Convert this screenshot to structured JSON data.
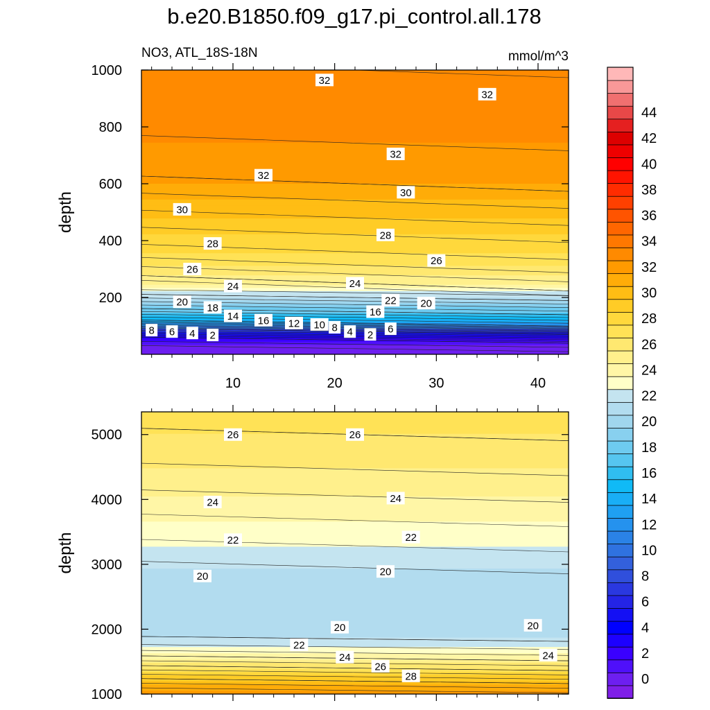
{
  "title": "b.e20.B1850.f09_g17.pi_control.all.178",
  "subtitle_left": "NO3, ATL_18S-18N",
  "subtitle_right": "mmol/m^3",
  "colorbar": {
    "levels": [
      -1,
      0,
      1,
      2,
      3,
      4,
      5,
      6,
      7,
      8,
      9,
      10,
      11,
      12,
      13,
      14,
      15,
      16,
      17,
      18,
      19,
      20,
      21,
      22,
      23,
      24,
      25,
      26,
      27,
      28,
      29,
      30,
      31,
      32,
      33,
      34,
      35,
      36,
      37,
      38,
      39,
      40,
      41,
      42,
      43,
      44,
      45,
      46
    ],
    "tick_labels": [
      "0",
      "2",
      "4",
      "6",
      "8",
      "10",
      "12",
      "14",
      "16",
      "18",
      "20",
      "22",
      "24",
      "26",
      "28",
      "30",
      "32",
      "34",
      "36",
      "38",
      "40",
      "42",
      "44"
    ],
    "colors": [
      "#7f1fe8",
      "#6d1ff0",
      "#4f10fa",
      "#3a00ff",
      "#1d00ff",
      "#0000ff",
      "#1410f4",
      "#2424e6",
      "#2a38e0",
      "#304fdc",
      "#3360dc",
      "#2f72e0",
      "#2a82e6",
      "#2592ee",
      "#1fa0f2",
      "#19aef6",
      "#10baf6",
      "#30bef0",
      "#56c6f0",
      "#6ecbf0",
      "#88d0ef",
      "#a0d6ee",
      "#b2dcef",
      "#c4e4f0",
      "#ffffc8",
      "#fff6a6",
      "#fff08c",
      "#ffe870",
      "#ffe256",
      "#ffd83c",
      "#ffcc26",
      "#ffbd14",
      "#ffac08",
      "#ff9a00",
      "#ff8a00",
      "#ff7800",
      "#ff6600",
      "#ff5400",
      "#ff4000",
      "#ff2c00",
      "#ff1400",
      "#ff0000",
      "#ee0000",
      "#dd0000",
      "#e52020",
      "#e84848",
      "#f07070",
      "#f89898",
      "#ffb8b8"
    ]
  },
  "chart_data": [
    {
      "type": "contour",
      "panel": "upper",
      "variable": "NO3",
      "region": "ATL_18S-18N",
      "units": "mmol/m^3",
      "ylabel": "depth",
      "xlabel": "",
      "xlim": [
        1,
        43
      ],
      "ylim": [
        1000,
        0
      ],
      "x_ticks": [
        10,
        20,
        30,
        40
      ],
      "y_ticks": [
        200,
        400,
        600,
        800,
        1000
      ],
      "contour_interval": 1,
      "profile": [
        {
          "depth": 20,
          "value": -1
        },
        {
          "depth": 50,
          "value": 1
        },
        {
          "depth": 80,
          "value": 6
        },
        {
          "depth": 110,
          "value": 13
        },
        {
          "depth": 150,
          "value": 17
        },
        {
          "depth": 200,
          "value": 21
        },
        {
          "depth": 250,
          "value": 24
        },
        {
          "depth": 330,
          "value": 26.5
        },
        {
          "depth": 450,
          "value": 28.5
        },
        {
          "depth": 600,
          "value": 31
        },
        {
          "depth": 800,
          "value": 32.4
        },
        {
          "depth": 1000,
          "value": 32
        }
      ],
      "contour_labels": [
        {
          "x": 2,
          "depth": 85,
          "value": "8"
        },
        {
          "x": 4,
          "depth": 80,
          "value": "6"
        },
        {
          "x": 6,
          "depth": 75,
          "value": "4"
        },
        {
          "x": 8,
          "depth": 68,
          "value": "2"
        },
        {
          "x": 10,
          "depth": 135,
          "value": "14"
        },
        {
          "x": 13,
          "depth": 120,
          "value": "16"
        },
        {
          "x": 16,
          "depth": 110,
          "value": "12"
        },
        {
          "x": 18.5,
          "depth": 105,
          "value": "10"
        },
        {
          "x": 20,
          "depth": 95,
          "value": "8"
        },
        {
          "x": 21.5,
          "depth": 80,
          "value": "4"
        },
        {
          "x": 23.5,
          "depth": 70,
          "value": "2"
        },
        {
          "x": 25.5,
          "depth": 90,
          "value": "6"
        },
        {
          "x": 8,
          "depth": 165,
          "value": "18"
        },
        {
          "x": 5,
          "depth": 185,
          "value": "20"
        },
        {
          "x": 24,
          "depth": 150,
          "value": "16"
        },
        {
          "x": 25.5,
          "depth": 190,
          "value": "22"
        },
        {
          "x": 29,
          "depth": 180,
          "value": "20"
        },
        {
          "x": 10,
          "depth": 240,
          "value": "24"
        },
        {
          "x": 22,
          "depth": 250,
          "value": "24"
        },
        {
          "x": 6,
          "depth": 300,
          "value": "26"
        },
        {
          "x": 30,
          "depth": 330,
          "value": "26"
        },
        {
          "x": 8,
          "depth": 390,
          "value": "28"
        },
        {
          "x": 25,
          "depth": 420,
          "value": "28"
        },
        {
          "x": 5,
          "depth": 510,
          "value": "30"
        },
        {
          "x": 27,
          "depth": 570,
          "value": "30"
        },
        {
          "x": 13,
          "depth": 630,
          "value": "32"
        },
        {
          "x": 26,
          "depth": 705,
          "value": "32"
        },
        {
          "x": 35,
          "depth": 915,
          "value": "32"
        },
        {
          "x": 19,
          "depth": 965,
          "value": "32"
        }
      ]
    },
    {
      "type": "contour",
      "panel": "lower",
      "variable": "NO3",
      "region": "ATL_18S-18N",
      "units": "mmol/m^3",
      "ylabel": "depth",
      "xlabel": "",
      "xlim": [
        1,
        43
      ],
      "ylim": [
        5350,
        1000
      ],
      "y_ticks": [
        1000,
        2000,
        3000,
        4000,
        5000
      ],
      "contour_interval": 1,
      "profile": [
        {
          "depth": 1000,
          "value": 31.8
        },
        {
          "depth": 1200,
          "value": 29
        },
        {
          "depth": 1400,
          "value": 26
        },
        {
          "depth": 1550,
          "value": 24
        },
        {
          "depth": 1700,
          "value": 22.2
        },
        {
          "depth": 1850,
          "value": 21
        },
        {
          "depth": 2000,
          "value": 20.5
        },
        {
          "depth": 2500,
          "value": 20.2
        },
        {
          "depth": 2800,
          "value": 20.6
        },
        {
          "depth": 3100,
          "value": 21.4
        },
        {
          "depth": 3350,
          "value": 22.2
        },
        {
          "depth": 3800,
          "value": 23.3
        },
        {
          "depth": 4300,
          "value": 24.7
        },
        {
          "depth": 5000,
          "value": 26
        },
        {
          "depth": 5350,
          "value": 26.4
        }
      ],
      "contour_labels": [
        {
          "x": 27.5,
          "depth": 1280,
          "value": "28"
        },
        {
          "x": 24.5,
          "depth": 1430,
          "value": "26"
        },
        {
          "x": 21,
          "depth": 1570,
          "value": "24"
        },
        {
          "x": 41,
          "depth": 1600,
          "value": "24"
        },
        {
          "x": 16.5,
          "depth": 1760,
          "value": "22"
        },
        {
          "x": 20.5,
          "depth": 2030,
          "value": "20"
        },
        {
          "x": 39.5,
          "depth": 2060,
          "value": "20"
        },
        {
          "x": 7,
          "depth": 2820,
          "value": "20"
        },
        {
          "x": 25,
          "depth": 2890,
          "value": "20"
        },
        {
          "x": 10,
          "depth": 3380,
          "value": "22"
        },
        {
          "x": 27.5,
          "depth": 3420,
          "value": "22"
        },
        {
          "x": 8,
          "depth": 3960,
          "value": "24"
        },
        {
          "x": 26,
          "depth": 4020,
          "value": "24"
        },
        {
          "x": 10,
          "depth": 5000,
          "value": "26"
        },
        {
          "x": 22,
          "depth": 5000,
          "value": "26"
        }
      ]
    }
  ]
}
